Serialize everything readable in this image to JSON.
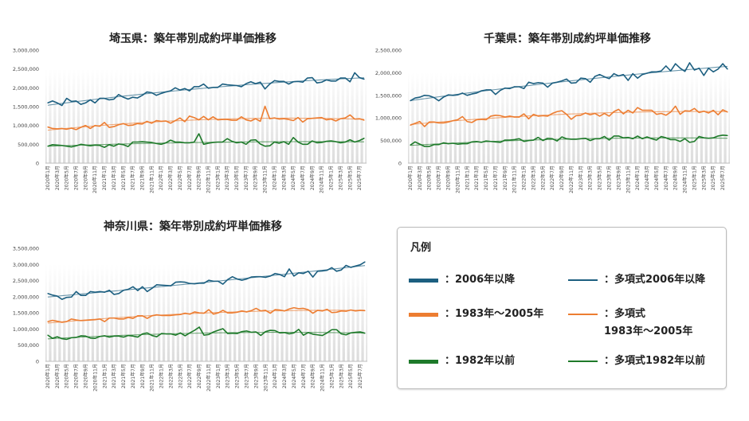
{
  "colors": {
    "post2006": "#1c5f80",
    "y1983_2005": "#ed7d31",
    "pre1982": "#1e7a2a"
  },
  "x_labels": [
    "2020年1月",
    "2020年3月",
    "2020年5月",
    "2020年7月",
    "2020年9月",
    "2020年11月",
    "2021年1月",
    "2021年3月",
    "2021年5月",
    "2021年7月",
    "2021年9月",
    "2021年11月",
    "2022年1月",
    "2022年3月",
    "2022年5月",
    "2022年7月",
    "2022年9月",
    "2022年11月",
    "2023年1月",
    "2023年3月",
    "2023年5月",
    "2023年7月",
    "2023年9月",
    "2023年11月",
    "2024年1月",
    "2024年3月",
    "2024年5月",
    "2024年7月",
    "2024年9月",
    "2024年11月",
    "2025年1月",
    "2025年3月",
    "2025年5月",
    "2025年7月"
  ],
  "chart_data": [
    {
      "type": "line",
      "title": "埼玉県：築年帯別成約坪単価推移",
      "x_range": [
        "2020年1月",
        "2025年8月"
      ],
      "ylim": [
        0,
        3000000
      ],
      "yticks": [
        "0",
        "500,000",
        "1,000,000",
        "1,500,000",
        "2,000,000",
        "2,500,000",
        "3,000,000"
      ],
      "trendline": "polynomial",
      "series": [
        {
          "key": "post2006",
          "values": [
            1600000,
            1650000,
            1600000,
            1530000,
            1720000,
            1640000,
            1650000,
            1560000,
            1600000,
            1680000,
            1600000,
            1720000,
            1720000,
            1680000,
            1700000,
            1820000,
            1750000,
            1700000,
            1750000,
            1730000,
            1800000,
            1890000,
            1870000,
            1800000,
            1850000,
            1890000,
            1920000,
            2000000,
            1940000,
            1980000,
            1920000,
            2030000,
            2030000,
            2100000,
            1990000,
            2010000,
            2010000,
            2100000,
            2080000,
            2070000,
            2060000,
            2030000,
            2110000,
            2160000,
            2110000,
            2150000,
            1970000,
            2100000,
            2190000,
            2170000,
            2170000,
            2100000,
            2160000,
            2170000,
            2150000,
            2260000,
            2270000,
            2130000,
            2150000,
            2210000,
            2180000,
            2180000,
            2260000,
            2260000,
            2160000,
            2400000,
            2270000,
            2230000
          ]
        },
        {
          "key": "y1983_2005",
          "values": [
            960000,
            920000,
            910000,
            920000,
            900000,
            930000,
            890000,
            950000,
            1000000,
            920000,
            1000000,
            980000,
            1080000,
            950000,
            970000,
            1020000,
            1050000,
            1000000,
            1010000,
            1050000,
            1040000,
            1110000,
            1060000,
            1130000,
            1110000,
            1120000,
            1060000,
            1130000,
            1200000,
            1100000,
            1250000,
            1210000,
            1150000,
            1240000,
            1150000,
            1230000,
            1150000,
            1160000,
            1160000,
            1140000,
            1140000,
            1230000,
            1150000,
            1120000,
            1180000,
            1110000,
            1510000,
            1180000,
            1200000,
            1170000,
            1180000,
            1160000,
            1130000,
            1210000,
            1090000,
            1180000,
            1190000,
            1200000,
            1210000,
            1150000,
            1170000,
            1120000,
            1180000,
            1200000,
            1280000,
            1170000,
            1180000,
            1140000
          ]
        },
        {
          "key": "pre1982",
          "values": [
            450000,
            490000,
            480000,
            470000,
            450000,
            430000,
            460000,
            500000,
            480000,
            460000,
            480000,
            470000,
            420000,
            490000,
            450000,
            510000,
            490000,
            440000,
            560000,
            560000,
            570000,
            560000,
            550000,
            520000,
            500000,
            540000,
            610000,
            560000,
            560000,
            540000,
            540000,
            560000,
            780000,
            500000,
            530000,
            550000,
            560000,
            560000,
            650000,
            580000,
            540000,
            560000,
            500000,
            610000,
            620000,
            510000,
            450000,
            460000,
            560000,
            530000,
            570000,
            500000,
            680000,
            560000,
            500000,
            500000,
            590000,
            540000,
            550000,
            580000,
            590000,
            570000,
            540000,
            560000,
            620000,
            560000,
            600000,
            660000
          ]
        }
      ]
    },
    {
      "type": "line",
      "title": "千葉県：築年帯別成約坪単価推移",
      "x_range": [
        "2020年1月",
        "2025年8月"
      ],
      "ylim": [
        0,
        2500000
      ],
      "yticks": [
        "0",
        "500,000",
        "1,000,000",
        "1,500,000",
        "2,000,000",
        "2,500,000"
      ],
      "trendline": "polynomial",
      "series": [
        {
          "key": "post2006",
          "values": [
            1380000,
            1440000,
            1460000,
            1500000,
            1490000,
            1450000,
            1380000,
            1460000,
            1510000,
            1500000,
            1510000,
            1550000,
            1500000,
            1530000,
            1550000,
            1600000,
            1620000,
            1620000,
            1520000,
            1610000,
            1660000,
            1650000,
            1690000,
            1690000,
            1650000,
            1790000,
            1760000,
            1780000,
            1770000,
            1680000,
            1770000,
            1790000,
            1820000,
            1860000,
            1770000,
            1780000,
            1880000,
            1870000,
            1790000,
            1920000,
            1960000,
            1910000,
            1870000,
            1980000,
            1930000,
            1960000,
            1830000,
            1980000,
            1880000,
            1960000,
            1990000,
            2020000,
            2020000,
            2040000,
            2150000,
            2040000,
            2200000,
            2100000,
            2030000,
            2220000,
            2060000,
            2100000,
            1940000,
            2100000,
            2020000,
            2080000,
            2200000,
            2080000
          ]
        },
        {
          "key": "y1983_2005",
          "values": [
            840000,
            880000,
            920000,
            810000,
            910000,
            910000,
            890000,
            890000,
            910000,
            940000,
            960000,
            1030000,
            920000,
            900000,
            960000,
            970000,
            960000,
            1040000,
            1060000,
            1050000,
            1020000,
            1040000,
            1020000,
            1020000,
            1090000,
            980000,
            1080000,
            1040000,
            1050000,
            1040000,
            1100000,
            1140000,
            1160000,
            1080000,
            970000,
            1050000,
            1060000,
            1110000,
            1070000,
            1100000,
            1040000,
            1100000,
            1040000,
            1140000,
            1190000,
            1090000,
            1170000,
            1110000,
            1230000,
            1170000,
            1170000,
            1170000,
            1080000,
            1100000,
            1060000,
            1130000,
            1260000,
            1080000,
            1160000,
            1150000,
            1210000,
            1120000,
            1150000,
            1110000,
            1170000,
            1070000,
            1180000,
            1130000
          ]
        },
        {
          "key": "pre1982",
          "values": [
            400000,
            470000,
            420000,
            370000,
            370000,
            410000,
            410000,
            450000,
            430000,
            440000,
            420000,
            430000,
            430000,
            470000,
            480000,
            460000,
            490000,
            480000,
            470000,
            460000,
            510000,
            510000,
            520000,
            540000,
            480000,
            500000,
            510000,
            570000,
            500000,
            550000,
            540000,
            490000,
            580000,
            540000,
            530000,
            530000,
            540000,
            550000,
            500000,
            540000,
            540000,
            590000,
            510000,
            600000,
            600000,
            560000,
            570000,
            540000,
            600000,
            540000,
            580000,
            540000,
            510000,
            590000,
            560000,
            520000,
            520000,
            480000,
            540000,
            460000,
            480000,
            590000,
            560000,
            550000,
            560000,
            600000,
            620000,
            610000
          ]
        }
      ]
    },
    {
      "type": "line",
      "title": "神奈川県：築年帯別成約坪単価推移",
      "x_range": [
        "2020年1月",
        "2025年8月"
      ],
      "ylim": [
        0,
        3500000
      ],
      "yticks": [
        "0",
        "500,000",
        "1,000,000",
        "1,500,000",
        "2,000,000",
        "2,500,000",
        "3,000,000",
        "3,500,000"
      ],
      "trendline": "polynomial",
      "series": [
        {
          "key": "post2006",
          "values": [
            2100000,
            2050000,
            2020000,
            1920000,
            1980000,
            1990000,
            2160000,
            2040000,
            2040000,
            2160000,
            2140000,
            2160000,
            2140000,
            2200000,
            2070000,
            2100000,
            2200000,
            2230000,
            2310000,
            2190000,
            2310000,
            2160000,
            2260000,
            2370000,
            2360000,
            2350000,
            2340000,
            2450000,
            2460000,
            2450000,
            2410000,
            2400000,
            2420000,
            2420000,
            2510000,
            2480000,
            2480000,
            2390000,
            2530000,
            2620000,
            2550000,
            2510000,
            2550000,
            2610000,
            2620000,
            2620000,
            2600000,
            2640000,
            2720000,
            2690000,
            2620000,
            2860000,
            2640000,
            2740000,
            2720000,
            2790000,
            2610000,
            2790000,
            2800000,
            2820000,
            2900000,
            2790000,
            2830000,
            2970000,
            2910000,
            2950000,
            2990000,
            3080000
          ]
        },
        {
          "key": "y1983_2005",
          "values": [
            1230000,
            1270000,
            1240000,
            1210000,
            1230000,
            1310000,
            1280000,
            1260000,
            1270000,
            1280000,
            1290000,
            1310000,
            1230000,
            1340000,
            1340000,
            1310000,
            1310000,
            1360000,
            1330000,
            1410000,
            1410000,
            1330000,
            1410000,
            1440000,
            1420000,
            1420000,
            1420000,
            1440000,
            1450000,
            1490000,
            1460000,
            1530000,
            1500000,
            1490000,
            1600000,
            1460000,
            1500000,
            1580000,
            1500000,
            1500000,
            1520000,
            1560000,
            1530000,
            1570000,
            1640000,
            1560000,
            1580000,
            1490000,
            1600000,
            1590000,
            1560000,
            1620000,
            1660000,
            1630000,
            1640000,
            1600000,
            1490000,
            1580000,
            1560000,
            1610000,
            1510000,
            1520000,
            1560000,
            1550000,
            1590000,
            1560000,
            1580000,
            1570000
          ]
        },
        {
          "key": "pre1982",
          "values": [
            810000,
            710000,
            760000,
            700000,
            680000,
            730000,
            740000,
            790000,
            780000,
            720000,
            710000,
            770000,
            790000,
            750000,
            780000,
            780000,
            750000,
            800000,
            780000,
            750000,
            850000,
            880000,
            800000,
            760000,
            860000,
            850000,
            850000,
            810000,
            880000,
            790000,
            880000,
            960000,
            1060000,
            810000,
            830000,
            910000,
            960000,
            1010000,
            860000,
            870000,
            860000,
            920000,
            940000,
            900000,
            910000,
            800000,
            920000,
            960000,
            950000,
            880000,
            890000,
            850000,
            880000,
            990000,
            810000,
            890000,
            840000,
            820000,
            800000,
            880000,
            980000,
            980000,
            850000,
            820000,
            880000,
            900000,
            910000,
            870000
          ]
        }
      ]
    }
  ],
  "legend": {
    "title": "凡例",
    "items": [
      {
        "key": "post2006",
        "style": "bar",
        "label": "：2006年以降"
      },
      {
        "key": "post2006",
        "style": "trend",
        "label": "：多項式2006年以降"
      },
      {
        "key": "y1983_2005",
        "style": "bar",
        "label": "：1983年～2005年"
      },
      {
        "key": "y1983_2005",
        "style": "trend",
        "label": "：多項式\n1983年～2005年"
      },
      {
        "key": "pre1982",
        "style": "bar",
        "label": "：1982年以前"
      },
      {
        "key": "pre1982",
        "style": "trend",
        "label": "：多項式1982年以前"
      }
    ]
  }
}
